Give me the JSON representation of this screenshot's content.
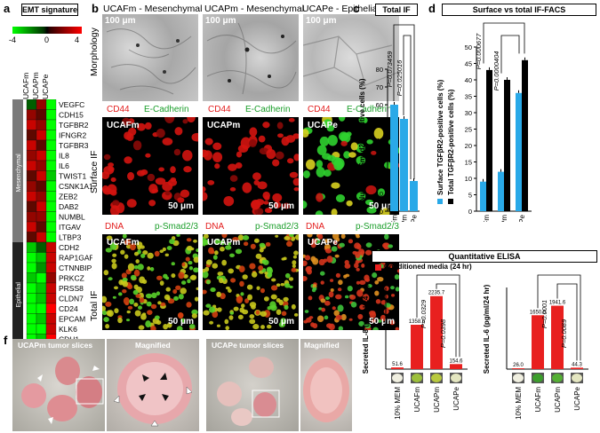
{
  "panel_labels": {
    "a": "a",
    "b": "b",
    "c": "c",
    "d": "d",
    "e": "e",
    "f": "f"
  },
  "a": {
    "title": "EMT signature",
    "scale_min": "-4",
    "scale_mid": "0",
    "scale_max": "4",
    "columns": [
      "UCAFm",
      "UCAPm",
      "UCAPe"
    ],
    "groups": [
      "Mesenchymal",
      "Epithelial"
    ],
    "genes": [
      "VEGFC",
      "CDH15",
      "TGFBR2",
      "IFNGR2",
      "TGFBR3",
      "IL8",
      "IL6",
      "TWIST1",
      "CSNK1A1",
      "ZEB2",
      "DAB2",
      "NUMBL",
      "ITGAV",
      "LTBP3",
      "CDH2",
      "RAP1GAP",
      "CTNNBIP1",
      "PRKCZ",
      "PRSS8",
      "CLDN7",
      "CD24",
      "EPCAM",
      "KLK6",
      "CDH1"
    ],
    "heat": [
      [
        -1,
        2,
        -4
      ],
      [
        2,
        1,
        -4
      ],
      [
        3,
        2,
        -4
      ],
      [
        1,
        3,
        -4
      ],
      [
        3,
        1,
        -4
      ],
      [
        2,
        3,
        -4
      ],
      [
        3,
        2,
        -4
      ],
      [
        1,
        3,
        -3
      ],
      [
        2,
        1,
        -4
      ],
      [
        3,
        2,
        -4
      ],
      [
        1,
        3,
        -4
      ],
      [
        2,
        2,
        -4
      ],
      [
        3,
        1,
        -4
      ],
      [
        1,
        3,
        -4
      ],
      [
        -3,
        -1,
        3
      ],
      [
        -4,
        -3,
        3
      ],
      [
        -4,
        -2,
        3
      ],
      [
        -3,
        -4,
        2
      ],
      [
        -4,
        -3,
        3
      ],
      [
        -4,
        -3,
        3
      ],
      [
        -4,
        -4,
        4
      ],
      [
        -4,
        -3,
        3
      ],
      [
        -4,
        -4,
        3
      ],
      [
        -4,
        -3,
        4
      ]
    ]
  },
  "b": {
    "titles": [
      "UCAFm - Mesenchymal",
      "UCAPm - Mesenchymal",
      "UCAPe - Epithelial"
    ],
    "scale_100": "100 μm",
    "scale_50": "50 μm",
    "row_labels": {
      "morphology": "Morphology",
      "surface": "Surface IF",
      "total": "Total IF"
    },
    "cd44": "CD44",
    "ecad": "E-Cadherin",
    "dna": "DNA",
    "psmad": "p-Smad2/3",
    "cells": [
      "UCAFm",
      "UCAPm",
      "UCAPe"
    ]
  },
  "c": {
    "title": "Total IF",
    "chart_data": {
      "type": "bar",
      "categories": [
        "UCAFm",
        "UCAPm",
        "UCAPe"
      ],
      "values": [
        60,
        52,
        17
      ],
      "ylim": [
        0,
        80
      ],
      "yticks": [
        0,
        10,
        20,
        30,
        40,
        50,
        60,
        70,
        80
      ],
      "ylabel": "Nuclear p-Smad2/3 positive cells (%)",
      "pvalues": [
        "P=0.073459",
        "P=0.025016"
      ],
      "color": "#29a9e8"
    }
  },
  "d": {
    "title": "Surface vs total IF-FACS",
    "legend": [
      "Surface TGFβR2-positive cells (%)",
      "Total TGFβR2-positive cells (%)"
    ],
    "chart_data": {
      "type": "bar",
      "categories": [
        "UCAFm",
        "UCAPm",
        "UCAPe"
      ],
      "series": [
        {
          "name": "Surface TGFβR2-positive cells (%)",
          "values": [
            9,
            12,
            36
          ],
          "color": "#29a9e8"
        },
        {
          "name": "Total TGFβR2-positive cells (%)",
          "values": [
            43,
            40,
            46
          ],
          "color": "#000000"
        }
      ],
      "ylim": [
        0,
        50
      ],
      "yticks": [
        0,
        5,
        10,
        15,
        20,
        25,
        30,
        35,
        40,
        45,
        50
      ],
      "pvalues": [
        "P=0.000677",
        "P=0.0000404"
      ]
    }
  },
  "e": {
    "title": "Quantitative ELISA",
    "legend": "Conditioned media (24 hr)",
    "il8": {
      "chart_data": {
        "type": "bar",
        "categories": [
          "10% MEM",
          "UCAFm",
          "UCAPm",
          "UCAPe"
        ],
        "values": [
          51.6,
          1358.6,
          2235.7,
          154.6
        ],
        "labels": [
          "51.6",
          "1358.6",
          "2235.7",
          "154.6"
        ],
        "ylim": [
          0,
          2500
        ],
        "ylabel": "Secreted IL-8 (pg/ml/24 hr)",
        "pvalues": [
          "P=0.0329",
          "P=0.0398"
        ],
        "color": "#e8201f"
      }
    },
    "il6": {
      "chart_data": {
        "type": "bar",
        "categories": [
          "10% MEM",
          "UCAFm",
          "UCAPm",
          "UCAPe"
        ],
        "values": [
          26.0,
          1650.0,
          1941.6,
          44.3
        ],
        "labels": [
          "26.0",
          "1650.0",
          "1941.6",
          "44.3"
        ],
        "ylim": [
          0,
          2500
        ],
        "ylabel": "Secreted IL-6 (pg/ml/24 hr)",
        "pvalues": [
          "P=0.0001",
          "P=0.0089"
        ],
        "color": "#e8201f"
      }
    }
  },
  "f": {
    "labels": [
      "UCAPm tumor slices",
      "Magnified",
      "UCAPe tumor slices",
      "Magnified"
    ]
  }
}
